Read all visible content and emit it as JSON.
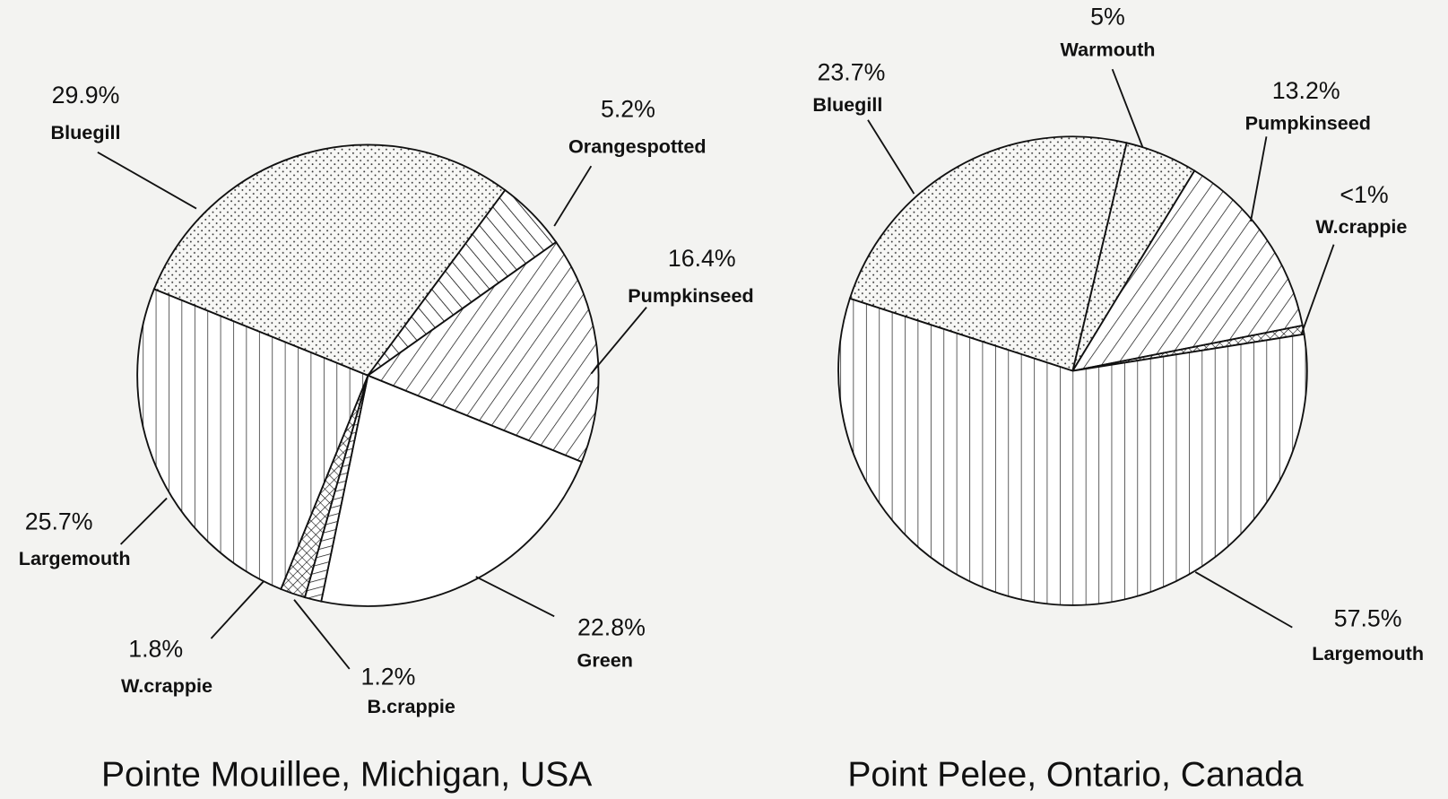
{
  "chart_data": [
    {
      "type": "pie",
      "title": "Pointe Mouillee, Michigan, USA",
      "categories": [
        "Bluegill",
        "Orangespotted",
        "Pumpkinseed",
        "Green",
        "B.crappie",
        "W.crappie",
        "Largemouth"
      ],
      "values": [
        29.9,
        5.2,
        16.4,
        22.8,
        1.2,
        1.8,
        25.7
      ],
      "value_labels": [
        "29.9%",
        "5.2%",
        "16.4%",
        "22.8%",
        "1.2%",
        "1.8%",
        "25.7%"
      ],
      "patterns": [
        "dots",
        "steep",
        "diagonal",
        "none",
        "horizontal",
        "crosshatch",
        "vertical"
      ]
    },
    {
      "type": "pie",
      "title": "Point Pelee, Ontario, Canada",
      "categories": [
        "Bluegill",
        "Warmouth",
        "Pumpkinseed",
        "W.crappie",
        "Largemouth"
      ],
      "values": [
        23.7,
        5,
        13.2,
        0.6,
        57.5
      ],
      "value_labels": [
        "23.7%",
        "5%",
        "13.2%",
        "<1%",
        "57.5%"
      ],
      "patterns": [
        "dots",
        "dots",
        "diagonal",
        "crosshatch",
        "vertical"
      ]
    }
  ]
}
